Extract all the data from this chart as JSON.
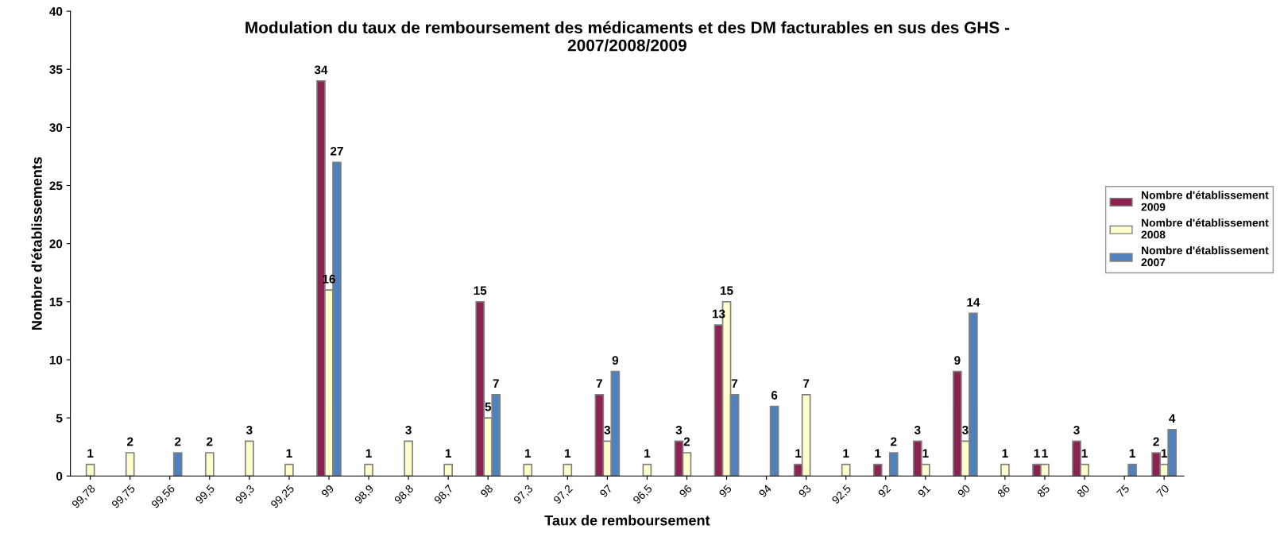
{
  "chart_data": {
    "type": "bar",
    "title": "Modulation du taux de remboursement des médicaments et des DM facturables en sus des GHS -\n2007/2008/2009",
    "xlabel": "Taux de remboursement",
    "ylabel": "Nombre d'établissements",
    "categories": [
      "99,78",
      "99,75",
      "99,56",
      "99,5",
      "99,3",
      "99,25",
      "99",
      "98,9",
      "98,8",
      "98,7",
      "98",
      "97,3",
      "97,2",
      "97",
      "96,5",
      "96",
      "95",
      "94",
      "93",
      "92,5",
      "92",
      "91",
      "90",
      "86",
      "85",
      "80",
      "75",
      "70"
    ],
    "series": [
      {
        "name": "Nombre d'établissement\n2009",
        "color": "#8b2252",
        "values": [
          null,
          null,
          null,
          null,
          null,
          null,
          34,
          null,
          null,
          null,
          15,
          null,
          null,
          7,
          null,
          3,
          13,
          null,
          1,
          null,
          1,
          3,
          9,
          null,
          1,
          3,
          null,
          2
        ]
      },
      {
        "name": "Nombre d'établissement\n2008",
        "color": "#ffffcc",
        "values": [
          1,
          2,
          null,
          2,
          3,
          1,
          16,
          1,
          3,
          1,
          5,
          1,
          1,
          3,
          1,
          2,
          15,
          null,
          7,
          1,
          null,
          1,
          3,
          1,
          1,
          1,
          null,
          1
        ]
      },
      {
        "name": "Nombre d'établissement\n2007",
        "color": "#4f81bd",
        "values": [
          null,
          null,
          2,
          null,
          null,
          null,
          27,
          null,
          null,
          null,
          7,
          null,
          null,
          9,
          null,
          null,
          7,
          6,
          null,
          null,
          2,
          null,
          14,
          null,
          null,
          null,
          1,
          4
        ]
      }
    ],
    "ylim": [
      0,
      40
    ],
    "yticks": [
      0,
      5,
      10,
      15,
      20,
      25,
      30,
      35,
      40
    ],
    "grid": false,
    "legend": "right",
    "data_labels": true
  }
}
